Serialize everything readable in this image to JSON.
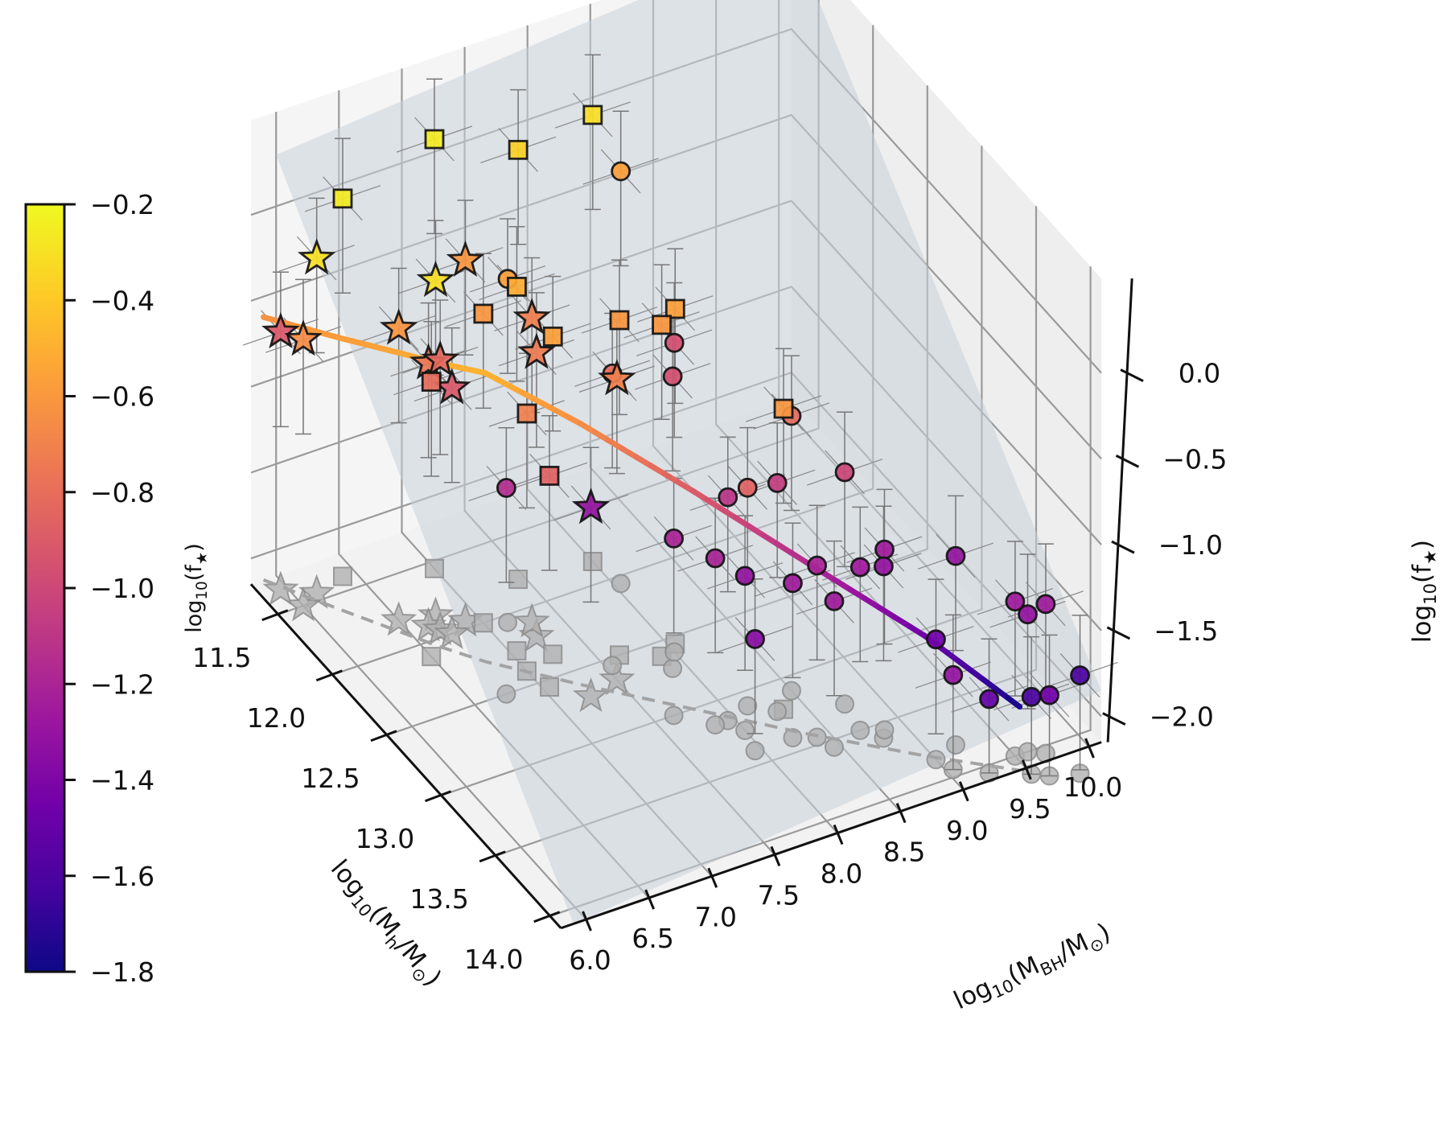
{
  "chart_data": {
    "type": "scatter",
    "projection": "3d",
    "title": "",
    "axes": {
      "x": {
        "label_parts": [
          "log",
          "10",
          "(M",
          "h",
          "/M",
          "⊙",
          ")"
        ],
        "label": "log10(Mh/M⊙)",
        "range": [
          11.25,
          14.1
        ],
        "ticks": [
          11.5,
          12.0,
          12.5,
          13.0,
          13.5,
          14.0
        ],
        "tick_labels": [
          "11.5",
          "12.0",
          "12.5",
          "13.0",
          "13.5",
          "14.0"
        ]
      },
      "y": {
        "label_parts": [
          "log",
          "10",
          "(M",
          "BH",
          "/M",
          "⊙",
          ")"
        ],
        "label": "log10(MBH/M⊙)",
        "range": [
          5.8,
          10.1
        ],
        "ticks": [
          6.0,
          6.5,
          7.0,
          7.5,
          8.0,
          8.5,
          9.0,
          9.5,
          10.0
        ],
        "tick_labels": [
          "6.0",
          "6.5",
          "7.0",
          "7.5",
          "8.0",
          "8.5",
          "9.0",
          "9.5",
          "10.0"
        ]
      },
      "z": {
        "label_parts": [
          "log",
          "10",
          "(f",
          "★",
          ")"
        ],
        "label": "log10(f★)",
        "range": [
          -2.1,
          0.5
        ],
        "ticks": [
          0.0,
          -0.5,
          -1.0,
          -1.5,
          -2.0
        ],
        "tick_labels": [
          "0.0",
          "−0.5",
          "−1.0",
          "−1.5",
          "−2.0"
        ]
      }
    },
    "grid": true,
    "colorbar": {
      "label_parts": [
        "log",
        "10",
        "(f",
        "★",
        ")"
      ],
      "label": "log10(f★)",
      "colormap": "plasma",
      "range": [
        -1.8,
        -0.2
      ],
      "ticks": [
        -0.2,
        -0.4,
        -0.6,
        -0.8,
        -1.0,
        -1.2,
        -1.4,
        -1.6,
        -1.8
      ],
      "tick_labels": [
        "−0.2",
        "−0.4",
        "−0.6",
        "−0.8",
        "−1.0",
        "−1.2",
        "−1.4",
        "−1.6",
        "−1.8"
      ],
      "placement": "left"
    },
    "colormap_stops": [
      "#0d0887",
      "#46039f",
      "#7201a8",
      "#9c179e",
      "#bd3786",
      "#d8576b",
      "#ed7953",
      "#fb9f3a",
      "#fdca26",
      "#f0f921"
    ],
    "fit_plane": {
      "description": "shaded fit plane",
      "color": "#c9d1da"
    },
    "model_curve": {
      "description": "model relation colored by log10(f★)",
      "points": [
        {
          "mh": 11.25,
          "mbh": 5.9,
          "z": -0.62
        },
        {
          "mh": 11.6,
          "mbh": 6.2,
          "z": -0.57
        },
        {
          "mh": 12.05,
          "mbh": 6.6,
          "z": -0.5
        },
        {
          "mh": 12.25,
          "mbh": 6.8,
          "z": -0.47
        },
        {
          "mh": 12.6,
          "mbh": 7.25,
          "z": -0.63
        },
        {
          "mh": 13.0,
          "mbh": 7.8,
          "z": -0.88
        },
        {
          "mh": 13.4,
          "mbh": 8.35,
          "z": -1.15
        },
        {
          "mh": 13.8,
          "mbh": 8.95,
          "z": -1.45
        },
        {
          "mh": 14.1,
          "mbh": 9.45,
          "z": -1.78
        }
      ],
      "projection_style": "dashed gray on floor"
    },
    "series": [
      {
        "name": "stars",
        "marker": "star",
        "points": [
          {
            "mh": 11.45,
            "mbh": 6.15,
            "z": -0.2,
            "c": -0.3
          },
          {
            "mh": 11.85,
            "mbh": 6.75,
            "z": -0.2,
            "c": -0.3
          },
          {
            "mh": 11.95,
            "mbh": 6.9,
            "z": -0.05,
            "c": -0.6
          },
          {
            "mh": 11.8,
            "mbh": 6.5,
            "z": -0.45,
            "c": -0.6
          },
          {
            "mh": 11.9,
            "mbh": 6.65,
            "z": -0.62,
            "c": -0.75
          },
          {
            "mh": 11.95,
            "mbh": 6.7,
            "z": -0.58,
            "c": -0.82
          },
          {
            "mh": 12.0,
            "mbh": 6.75,
            "z": -0.72,
            "c": -0.9
          },
          {
            "mh": 11.5,
            "mbh": 6.0,
            "z": -0.6,
            "c": -0.65
          },
          {
            "mh": 11.35,
            "mbh": 5.95,
            "z": -0.65,
            "c": -0.9
          },
          {
            "mh": 12.2,
            "mbh": 7.25,
            "z": -0.5,
            "c": -0.72
          },
          {
            "mh": 12.1,
            "mbh": 7.3,
            "z": -0.38,
            "c": -0.7
          },
          {
            "mh": 12.65,
            "mbh": 7.5,
            "z": -0.4,
            "c": -0.7
          },
          {
            "mh": 12.7,
            "mbh": 7.25,
            "z": -1.05,
            "c": -1.3
          }
        ]
      },
      {
        "name": "squares",
        "marker": "square",
        "points": [
          {
            "mh": 11.4,
            "mbh": 6.4,
            "z": 0.05,
            "c": -0.25
          },
          {
            "mh": 11.55,
            "mbh": 7.0,
            "z": 0.35,
            "c": -0.25
          },
          {
            "mh": 11.8,
            "mbh": 7.45,
            "z": 0.35,
            "c": -0.35
          },
          {
            "mh": 11.85,
            "mbh": 8.0,
            "z": 0.45,
            "c": -0.3
          },
          {
            "mh": 12.0,
            "mbh": 7.0,
            "z": -0.35,
            "c": -0.6
          },
          {
            "mh": 12.35,
            "mbh": 7.25,
            "z": -0.3,
            "c": -0.55
          },
          {
            "mh": 12.25,
            "mbh": 7.05,
            "z": -0.03,
            "c": -0.5
          },
          {
            "mh": 12.5,
            "mbh": 7.65,
            "z": -0.2,
            "c": -0.6
          },
          {
            "mh": 12.6,
            "mbh": 7.9,
            "z": -0.22,
            "c": -0.6
          },
          {
            "mh": 12.55,
            "mbh": 8.05,
            "z": -0.2,
            "c": -0.55
          },
          {
            "mh": 12.4,
            "mbh": 7.0,
            "z": -0.65,
            "c": -0.7
          },
          {
            "mh": 12.1,
            "mbh": 6.5,
            "z": -0.55,
            "c": -0.8
          },
          {
            "mh": 12.55,
            "mbh": 7.05,
            "z": -0.92,
            "c": -0.85
          },
          {
            "mh": 13.2,
            "mbh": 8.35,
            "z": -0.4,
            "c": -0.6
          }
        ]
      },
      {
        "name": "circles",
        "marker": "circle",
        "points": [
          {
            "mh": 12.05,
            "mbh": 8.05,
            "z": 0.25,
            "c": -0.55
          },
          {
            "mh": 12.05,
            "mbh": 7.15,
            "z": -0.15,
            "c": -0.55
          },
          {
            "mh": 12.55,
            "mbh": 7.55,
            "z": -0.45,
            "c": -0.8
          },
          {
            "mh": 12.7,
            "mbh": 7.9,
            "z": -0.45,
            "c": -0.95
          },
          {
            "mh": 12.6,
            "mbh": 8.0,
            "z": -0.35,
            "c": -0.95
          },
          {
            "mh": 12.5,
            "mbh": 6.75,
            "z": -0.95,
            "c": -1.15
          },
          {
            "mh": 13.1,
            "mbh": 8.5,
            "z": -0.55,
            "c": -0.8
          },
          {
            "mh": 13.3,
            "mbh": 8.75,
            "z": -0.8,
            "c": -1.0
          },
          {
            "mh": 13.2,
            "mbh": 8.3,
            "z": -0.82,
            "c": -1.05
          },
          {
            "mh": 13.1,
            "mbh": 8.15,
            "z": -0.88,
            "c": -0.85
          },
          {
            "mh": 13.15,
            "mbh": 7.95,
            "z": -0.85,
            "c": -1.1
          },
          {
            "mh": 13.0,
            "mbh": 7.65,
            "z": -1.12,
            "c": -1.2
          },
          {
            "mh": 13.15,
            "mbh": 7.85,
            "z": -1.18,
            "c": -1.2
          },
          {
            "mh": 13.45,
            "mbh": 8.4,
            "z": -1.15,
            "c": -1.2
          },
          {
            "mh": 13.4,
            "mbh": 8.25,
            "z": -1.25,
            "c": -1.25
          },
          {
            "mh": 13.55,
            "mbh": 8.45,
            "z": -1.3,
            "c": -1.25
          },
          {
            "mh": 13.5,
            "mbh": 8.7,
            "z": -1.2,
            "c": -1.25
          },
          {
            "mh": 13.6,
            "mbh": 8.8,
            "z": -1.15,
            "c": -1.3
          },
          {
            "mh": 13.55,
            "mbh": 8.85,
            "z": -1.1,
            "c": -1.25
          },
          {
            "mh": 13.25,
            "mbh": 8.0,
            "z": -1.25,
            "c": -1.3
          },
          {
            "mh": 13.4,
            "mbh": 7.95,
            "z": -1.5,
            "c": -1.35
          },
          {
            "mh": 13.8,
            "mbh": 9.2,
            "z": -1.05,
            "c": -1.3
          },
          {
            "mh": 14.0,
            "mbh": 9.5,
            "z": -1.25,
            "c": -1.25
          },
          {
            "mh": 14.0,
            "mbh": 9.6,
            "z": -1.35,
            "c": -1.3
          },
          {
            "mh": 14.05,
            "mbh": 9.7,
            "z": -1.28,
            "c": -1.25
          },
          {
            "mh": 13.85,
            "mbh": 9.0,
            "z": -1.45,
            "c": -1.45
          },
          {
            "mh": 13.95,
            "mbh": 9.05,
            "z": -1.6,
            "c": -1.3
          },
          {
            "mh": 14.05,
            "mbh": 9.25,
            "z": -1.72,
            "c": -1.5
          },
          {
            "mh": 14.15,
            "mbh": 9.5,
            "z": -1.7,
            "c": -1.6
          },
          {
            "mh": 14.2,
            "mbh": 9.6,
            "z": -1.68,
            "c": -1.45
          },
          {
            "mh": 14.25,
            "mbh": 9.8,
            "z": -1.58,
            "c": -1.6
          }
        ]
      }
    ]
  }
}
